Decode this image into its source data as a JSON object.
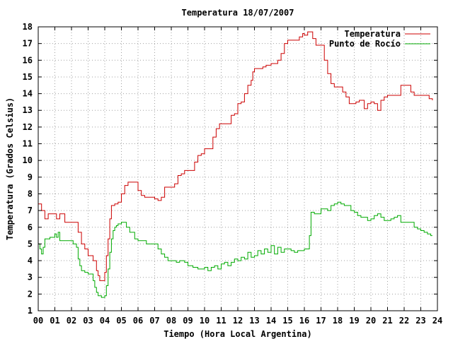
{
  "chart_data": {
    "type": "line",
    "title": "Temperatura 18/07/2007",
    "xlabel": "Tiempo (Hora Local Argentina)",
    "ylabel": "Temperatura (Grados Celsius)",
    "xlim": [
      0,
      24
    ],
    "ylim": [
      1,
      18
    ],
    "grid": true,
    "legend_position": "top-right",
    "x_tick_labels": [
      "00",
      "01",
      "02",
      "03",
      "04",
      "05",
      "06",
      "07",
      "08",
      "09",
      "10",
      "11",
      "12",
      "13",
      "14",
      "15",
      "16",
      "17",
      "18",
      "19",
      "20",
      "21",
      "22",
      "23",
      "24"
    ],
    "y_tick_labels": [
      "1",
      "2",
      "3",
      "4",
      "5",
      "6",
      "7",
      "8",
      "9",
      "10",
      "11",
      "12",
      "13",
      "14",
      "15",
      "16",
      "17",
      "18"
    ],
    "series": [
      {
        "name": "Temperatura",
        "color": "#cc0000",
        "points": [
          [
            0.0,
            7.4
          ],
          [
            0.2,
            7.0
          ],
          [
            0.4,
            6.5
          ],
          [
            0.6,
            6.8
          ],
          [
            0.8,
            6.8
          ],
          [
            1.0,
            6.8
          ],
          [
            1.1,
            6.5
          ],
          [
            1.3,
            6.8
          ],
          [
            1.5,
            6.8
          ],
          [
            1.6,
            6.3
          ],
          [
            1.9,
            6.3
          ],
          [
            2.2,
            6.3
          ],
          [
            2.4,
            5.7
          ],
          [
            2.6,
            5.0
          ],
          [
            2.8,
            4.7
          ],
          [
            3.0,
            4.3
          ],
          [
            3.2,
            4.3
          ],
          [
            3.3,
            4.0
          ],
          [
            3.5,
            3.4
          ],
          [
            3.6,
            3.1
          ],
          [
            3.7,
            2.8
          ],
          [
            3.9,
            2.8
          ],
          [
            4.0,
            3.3
          ],
          [
            4.1,
            4.3
          ],
          [
            4.2,
            5.3
          ],
          [
            4.3,
            6.5
          ],
          [
            4.4,
            7.3
          ],
          [
            4.6,
            7.4
          ],
          [
            4.8,
            7.5
          ],
          [
            5.0,
            8.0
          ],
          [
            5.2,
            8.5
          ],
          [
            5.4,
            8.7
          ],
          [
            5.6,
            8.7
          ],
          [
            5.8,
            8.7
          ],
          [
            6.0,
            8.2
          ],
          [
            6.2,
            7.9
          ],
          [
            6.4,
            7.8
          ],
          [
            6.6,
            7.8
          ],
          [
            6.8,
            7.8
          ],
          [
            7.0,
            7.7
          ],
          [
            7.2,
            7.6
          ],
          [
            7.4,
            7.8
          ],
          [
            7.6,
            8.4
          ],
          [
            7.8,
            8.4
          ],
          [
            8.0,
            8.4
          ],
          [
            8.2,
            8.6
          ],
          [
            8.4,
            9.1
          ],
          [
            8.6,
            9.2
          ],
          [
            8.8,
            9.4
          ],
          [
            9.0,
            9.4
          ],
          [
            9.2,
            9.4
          ],
          [
            9.4,
            9.9
          ],
          [
            9.6,
            10.3
          ],
          [
            9.8,
            10.4
          ],
          [
            10.0,
            10.7
          ],
          [
            10.3,
            10.7
          ],
          [
            10.5,
            11.4
          ],
          [
            10.7,
            11.9
          ],
          [
            10.9,
            12.2
          ],
          [
            11.2,
            12.2
          ],
          [
            11.4,
            12.2
          ],
          [
            11.6,
            12.7
          ],
          [
            11.8,
            12.8
          ],
          [
            12.0,
            13.4
          ],
          [
            12.2,
            13.5
          ],
          [
            12.4,
            14.0
          ],
          [
            12.6,
            14.5
          ],
          [
            12.8,
            14.8
          ],
          [
            12.9,
            15.3
          ],
          [
            13.0,
            15.5
          ],
          [
            13.3,
            15.5
          ],
          [
            13.5,
            15.6
          ],
          [
            13.7,
            15.7
          ],
          [
            14.0,
            15.8
          ],
          [
            14.3,
            15.8
          ],
          [
            14.4,
            16.0
          ],
          [
            14.6,
            16.4
          ],
          [
            14.8,
            17.0
          ],
          [
            15.0,
            17.2
          ],
          [
            15.3,
            17.2
          ],
          [
            15.5,
            17.2
          ],
          [
            15.7,
            17.4
          ],
          [
            15.9,
            17.6
          ],
          [
            16.0,
            17.5
          ],
          [
            16.2,
            17.7
          ],
          [
            16.4,
            17.7
          ],
          [
            16.5,
            17.3
          ],
          [
            16.7,
            16.9
          ],
          [
            16.9,
            16.9
          ],
          [
            17.0,
            16.9
          ],
          [
            17.2,
            16.0
          ],
          [
            17.4,
            15.2
          ],
          [
            17.6,
            14.6
          ],
          [
            17.8,
            14.4
          ],
          [
            18.1,
            14.4
          ],
          [
            18.3,
            14.1
          ],
          [
            18.5,
            13.8
          ],
          [
            18.7,
            13.4
          ],
          [
            18.9,
            13.4
          ],
          [
            19.1,
            13.5
          ],
          [
            19.3,
            13.6
          ],
          [
            19.5,
            13.6
          ],
          [
            19.6,
            13.1
          ],
          [
            19.8,
            13.4
          ],
          [
            20.0,
            13.5
          ],
          [
            20.2,
            13.4
          ],
          [
            20.4,
            13.0
          ],
          [
            20.6,
            13.6
          ],
          [
            20.8,
            13.8
          ],
          [
            21.0,
            13.9
          ],
          [
            21.3,
            13.9
          ],
          [
            21.6,
            13.9
          ],
          [
            21.8,
            14.5
          ],
          [
            22.0,
            14.5
          ],
          [
            22.2,
            14.5
          ],
          [
            22.4,
            14.1
          ],
          [
            22.6,
            13.9
          ],
          [
            22.8,
            13.9
          ],
          [
            23.0,
            13.9
          ],
          [
            23.2,
            13.9
          ],
          [
            23.4,
            13.9
          ],
          [
            23.5,
            13.7
          ],
          [
            23.7,
            13.6
          ]
        ]
      },
      {
        "name": "Punto de Rocío",
        "color": "#00aa00",
        "points": [
          [
            0.0,
            5.0
          ],
          [
            0.1,
            4.7
          ],
          [
            0.2,
            4.4
          ],
          [
            0.3,
            4.8
          ],
          [
            0.4,
            5.3
          ],
          [
            0.5,
            5.3
          ],
          [
            0.7,
            5.4
          ],
          [
            0.8,
            5.4
          ],
          [
            1.0,
            5.6
          ],
          [
            1.1,
            5.4
          ],
          [
            1.2,
            5.7
          ],
          [
            1.3,
            5.2
          ],
          [
            1.5,
            5.2
          ],
          [
            1.8,
            5.2
          ],
          [
            2.1,
            5.0
          ],
          [
            2.3,
            4.8
          ],
          [
            2.4,
            4.1
          ],
          [
            2.5,
            3.7
          ],
          [
            2.6,
            3.4
          ],
          [
            2.8,
            3.3
          ],
          [
            3.0,
            3.2
          ],
          [
            3.2,
            3.2
          ],
          [
            3.3,
            2.8
          ],
          [
            3.4,
            2.4
          ],
          [
            3.5,
            2.1
          ],
          [
            3.6,
            1.9
          ],
          [
            3.8,
            1.8
          ],
          [
            4.0,
            1.9
          ],
          [
            4.1,
            2.5
          ],
          [
            4.2,
            3.5
          ],
          [
            4.3,
            4.5
          ],
          [
            4.4,
            5.3
          ],
          [
            4.5,
            5.8
          ],
          [
            4.6,
            6.0
          ],
          [
            4.7,
            6.1
          ],
          [
            4.8,
            6.2
          ],
          [
            4.9,
            6.2
          ],
          [
            5.0,
            6.3
          ],
          [
            5.1,
            6.3
          ],
          [
            5.3,
            6.0
          ],
          [
            5.5,
            5.7
          ],
          [
            5.8,
            5.3
          ],
          [
            6.0,
            5.2
          ],
          [
            6.3,
            5.2
          ],
          [
            6.5,
            5.0
          ],
          [
            6.8,
            5.0
          ],
          [
            7.0,
            5.0
          ],
          [
            7.2,
            4.7
          ],
          [
            7.4,
            4.4
          ],
          [
            7.6,
            4.2
          ],
          [
            7.8,
            4.0
          ],
          [
            8.0,
            4.0
          ],
          [
            8.3,
            3.9
          ],
          [
            8.5,
            4.0
          ],
          [
            8.8,
            3.9
          ],
          [
            9.0,
            3.7
          ],
          [
            9.3,
            3.6
          ],
          [
            9.6,
            3.5
          ],
          [
            9.9,
            3.5
          ],
          [
            10.0,
            3.6
          ],
          [
            10.2,
            3.4
          ],
          [
            10.4,
            3.6
          ],
          [
            10.6,
            3.7
          ],
          [
            10.8,
            3.5
          ],
          [
            11.0,
            3.8
          ],
          [
            11.2,
            3.9
          ],
          [
            11.4,
            3.7
          ],
          [
            11.6,
            3.9
          ],
          [
            11.8,
            4.1
          ],
          [
            12.0,
            4.0
          ],
          [
            12.2,
            4.2
          ],
          [
            12.4,
            4.1
          ],
          [
            12.6,
            4.5
          ],
          [
            12.8,
            4.2
          ],
          [
            13.0,
            4.3
          ],
          [
            13.2,
            4.6
          ],
          [
            13.4,
            4.4
          ],
          [
            13.6,
            4.7
          ],
          [
            13.8,
            4.5
          ],
          [
            14.0,
            4.9
          ],
          [
            14.2,
            4.4
          ],
          [
            14.4,
            4.8
          ],
          [
            14.6,
            4.5
          ],
          [
            14.8,
            4.7
          ],
          [
            15.0,
            4.7
          ],
          [
            15.2,
            4.6
          ],
          [
            15.4,
            4.5
          ],
          [
            15.6,
            4.6
          ],
          [
            15.8,
            4.6
          ],
          [
            16.0,
            4.7
          ],
          [
            16.2,
            4.7
          ],
          [
            16.3,
            5.5
          ],
          [
            16.4,
            6.9
          ],
          [
            16.6,
            6.8
          ],
          [
            16.8,
            6.8
          ],
          [
            17.0,
            7.1
          ],
          [
            17.2,
            7.1
          ],
          [
            17.4,
            7.0
          ],
          [
            17.6,
            7.3
          ],
          [
            17.8,
            7.4
          ],
          [
            18.0,
            7.5
          ],
          [
            18.2,
            7.4
          ],
          [
            18.4,
            7.3
          ],
          [
            18.6,
            7.3
          ],
          [
            18.8,
            7.0
          ],
          [
            19.0,
            6.9
          ],
          [
            19.2,
            6.7
          ],
          [
            19.4,
            6.6
          ],
          [
            19.6,
            6.6
          ],
          [
            19.8,
            6.4
          ],
          [
            20.0,
            6.5
          ],
          [
            20.2,
            6.7
          ],
          [
            20.4,
            6.8
          ],
          [
            20.6,
            6.6
          ],
          [
            20.8,
            6.4
          ],
          [
            21.0,
            6.4
          ],
          [
            21.2,
            6.5
          ],
          [
            21.4,
            6.6
          ],
          [
            21.6,
            6.7
          ],
          [
            21.8,
            6.3
          ],
          [
            22.0,
            6.3
          ],
          [
            22.3,
            6.3
          ],
          [
            22.6,
            6.0
          ],
          [
            22.8,
            5.9
          ],
          [
            23.0,
            5.8
          ],
          [
            23.2,
            5.7
          ],
          [
            23.4,
            5.6
          ],
          [
            23.6,
            5.5
          ],
          [
            23.7,
            5.5
          ]
        ]
      }
    ]
  }
}
